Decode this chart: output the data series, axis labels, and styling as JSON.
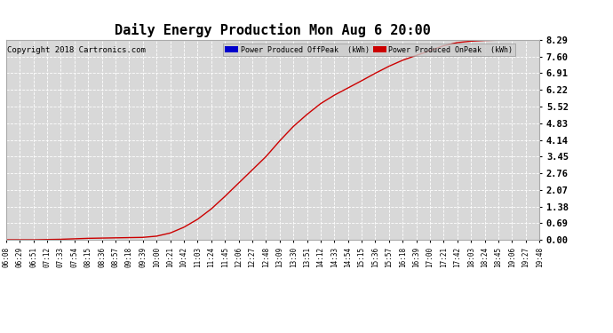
{
  "title": "Daily Energy Production Mon Aug 6 20:00",
  "copyright": "Copyright 2018 Cartronics.com",
  "legend_offpeak_label": "Power Produced OffPeak  (kWh)",
  "legend_onpeak_label": "Power Produced OnPeak  (kWh)",
  "offpeak_color": "#0000cc",
  "onpeak_color": "#cc0000",
  "line_color": "#cc0000",
  "background_color": "#ffffff",
  "plot_bg_color": "#d8d8d8",
  "grid_color": "#ffffff",
  "yticks": [
    0.0,
    0.69,
    1.38,
    2.07,
    2.76,
    3.45,
    4.14,
    4.83,
    5.52,
    6.22,
    6.91,
    7.6,
    8.29
  ],
  "ylim": [
    0.0,
    8.29
  ],
  "x_labels": [
    "06:08",
    "06:29",
    "06:51",
    "07:12",
    "07:33",
    "07:54",
    "08:15",
    "08:36",
    "08:57",
    "09:18",
    "09:39",
    "10:00",
    "10:21",
    "10:42",
    "11:03",
    "11:24",
    "11:45",
    "12:06",
    "12:27",
    "12:48",
    "13:09",
    "13:30",
    "13:51",
    "14:12",
    "14:33",
    "14:54",
    "15:15",
    "15:36",
    "15:57",
    "16:18",
    "16:39",
    "17:00",
    "17:21",
    "17:42",
    "18:03",
    "18:24",
    "18:45",
    "19:06",
    "19:27",
    "19:48"
  ],
  "anchors_idx": [
    0,
    1,
    2,
    3,
    4,
    5,
    6,
    7,
    8,
    9,
    10,
    11,
    12,
    13,
    14,
    15,
    16,
    17,
    18,
    19,
    20,
    21,
    22,
    23,
    24,
    25,
    26,
    27,
    28,
    29,
    30,
    31,
    32,
    33,
    34,
    35,
    36,
    37,
    38,
    39
  ],
  "anchors_val": [
    0.0,
    0.0,
    0.0,
    0.01,
    0.02,
    0.04,
    0.06,
    0.07,
    0.08,
    0.09,
    0.1,
    0.15,
    0.28,
    0.52,
    0.85,
    1.28,
    1.8,
    2.35,
    2.9,
    3.45,
    4.1,
    4.7,
    5.2,
    5.65,
    6.0,
    6.3,
    6.6,
    6.91,
    7.2,
    7.45,
    7.65,
    7.85,
    8.05,
    8.18,
    8.24,
    8.27,
    8.28,
    8.29,
    8.29,
    8.29
  ],
  "title_fontsize": 11,
  "copyright_fontsize": 6.5,
  "tick_fontsize": 5.5,
  "ytick_fontsize": 7.5
}
